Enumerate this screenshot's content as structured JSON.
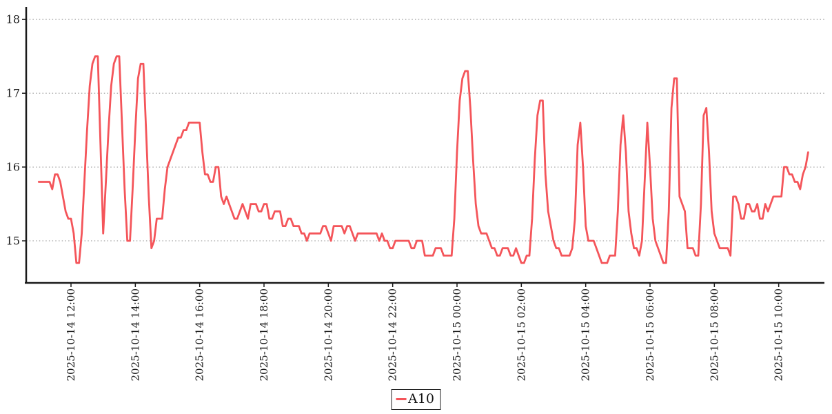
{
  "chart_data": {
    "type": "line",
    "title": "",
    "series": [
      {
        "name": "A10",
        "color": "#f4555a",
        "start_time": "2025-10-14 11:00",
        "interval_minutes": 5,
        "values": [
          15.8,
          15.8,
          15.8,
          15.8,
          15.8,
          15.7,
          15.9,
          15.9,
          15.8,
          15.6,
          15.4,
          15.3,
          15.3,
          15.1,
          14.7,
          14.7,
          15.1,
          15.8,
          16.5,
          17.1,
          17.4,
          17.5,
          17.5,
          16.3,
          15.1,
          15.8,
          16.5,
          17.1,
          17.4,
          17.5,
          17.5,
          16.6,
          15.7,
          15.0,
          15.0,
          15.7,
          16.5,
          17.2,
          17.4,
          17.4,
          16.5,
          15.6,
          14.9,
          15.0,
          15.3,
          15.3,
          15.3,
          15.7,
          16.0,
          16.1,
          16.2,
          16.3,
          16.4,
          16.4,
          16.5,
          16.5,
          16.6,
          16.6,
          16.6,
          16.6,
          16.6,
          16.2,
          15.9,
          15.9,
          15.8,
          15.8,
          16.0,
          16.0,
          15.6,
          15.5,
          15.6,
          15.5,
          15.4,
          15.3,
          15.3,
          15.4,
          15.5,
          15.4,
          15.3,
          15.5,
          15.5,
          15.5,
          15.4,
          15.4,
          15.5,
          15.5,
          15.3,
          15.3,
          15.4,
          15.4,
          15.4,
          15.2,
          15.2,
          15.3,
          15.3,
          15.2,
          15.2,
          15.2,
          15.1,
          15.1,
          15.0,
          15.1,
          15.1,
          15.1,
          15.1,
          15.1,
          15.2,
          15.2,
          15.1,
          15.0,
          15.2,
          15.2,
          15.2,
          15.2,
          15.1,
          15.2,
          15.2,
          15.1,
          15.0,
          15.1,
          15.1,
          15.1,
          15.1,
          15.1,
          15.1,
          15.1,
          15.1,
          15.0,
          15.1,
          15.0,
          15.0,
          14.9,
          14.9,
          15.0,
          15.0,
          15.0,
          15.0,
          15.0,
          15.0,
          14.9,
          14.9,
          15.0,
          15.0,
          15.0,
          14.8,
          14.8,
          14.8,
          14.8,
          14.9,
          14.9,
          14.9,
          14.8,
          14.8,
          14.8,
          14.8,
          15.3,
          16.2,
          16.9,
          17.2,
          17.3,
          17.3,
          16.8,
          16.1,
          15.5,
          15.2,
          15.1,
          15.1,
          15.1,
          15.0,
          14.9,
          14.9,
          14.8,
          14.8,
          14.9,
          14.9,
          14.9,
          14.8,
          14.8,
          14.9,
          14.8,
          14.7,
          14.7,
          14.8,
          14.8,
          15.3,
          16.1,
          16.7,
          16.9,
          16.9,
          15.9,
          15.4,
          15.2,
          15.0,
          14.9,
          14.9,
          14.8,
          14.8,
          14.8,
          14.8,
          14.9,
          15.3,
          16.3,
          16.6,
          16.0,
          15.2,
          15.0,
          15.0,
          15.0,
          14.9,
          14.8,
          14.7,
          14.7,
          14.7,
          14.8,
          14.8,
          14.8,
          15.4,
          16.3,
          16.7,
          16.2,
          15.4,
          15.1,
          14.9,
          14.9,
          14.8,
          15.0,
          15.8,
          16.6,
          16.0,
          15.3,
          15.0,
          14.9,
          14.8,
          14.7,
          14.7,
          15.4,
          16.8,
          17.2,
          17.2,
          15.6,
          15.5,
          15.4,
          14.9,
          14.9,
          14.9,
          14.8,
          14.8,
          15.5,
          16.7,
          16.8,
          16.2,
          15.4,
          15.1,
          15.0,
          14.9,
          14.9,
          14.9,
          14.9,
          14.8,
          15.6,
          15.6,
          15.5,
          15.3,
          15.3,
          15.5,
          15.5,
          15.4,
          15.4,
          15.5,
          15.3,
          15.3,
          15.5,
          15.4,
          15.5,
          15.6,
          15.6,
          15.6,
          15.6,
          16.0,
          16.0,
          15.9,
          15.9,
          15.8,
          15.8,
          15.7,
          15.9,
          16.0,
          16.2
        ]
      }
    ],
    "x_axis": {
      "tick_labels": [
        "2025-10-14 12:00",
        "2025-10-14 14:00",
        "2025-10-14 16:00",
        "2025-10-14 18:00",
        "2025-10-14 20:00",
        "2025-10-14 22:00",
        "2025-10-15 00:00",
        "2025-10-15 02:00",
        "2025-10-15 04:00",
        "2025-10-15 06:00",
        "2025-10-15 08:00",
        "2025-10-15 10:00"
      ],
      "first_tick_offset_minutes": 60,
      "tick_interval_minutes": 120
    },
    "y_axis": {
      "tick_labels": [
        "15",
        "16",
        "17",
        "18"
      ],
      "tick_values": [
        15,
        16,
        17,
        18
      ],
      "min": 14.43,
      "max": 18.17
    },
    "grid": {
      "horizontal": "dotted",
      "vertical": "none"
    },
    "legend": {
      "position": "bottom-center",
      "entries": [
        {
          "label": "A10",
          "color": "#f4555a"
        }
      ]
    },
    "colors": {
      "axis": "#1a1a1a",
      "grid": "#8c8c8c",
      "tick_text": "#1a1a1a"
    }
  }
}
